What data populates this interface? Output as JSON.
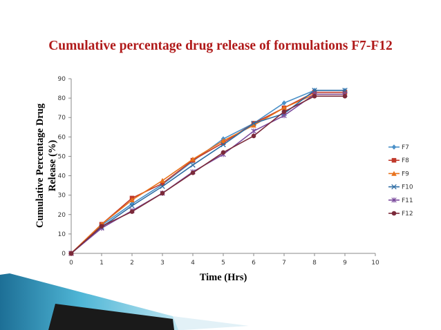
{
  "slide": {
    "title": "Cumulative percentage drug release of formulations F7-F12",
    "title_color": "#b01a1a"
  },
  "chart_data": {
    "type": "line",
    "title": "",
    "xlabel": "Time (Hrs)",
    "ylabel_lines": [
      "Cumulative Percentage Drug",
      "Release (%)"
    ],
    "xlim": [
      0,
      10
    ],
    "ylim": [
      0,
      90
    ],
    "x_ticks": [
      "0",
      "1",
      "2",
      "3",
      "4",
      "5",
      "6",
      "7",
      "8",
      "9",
      "10"
    ],
    "y_ticks": [
      "0",
      "10",
      "20",
      "30",
      "40",
      "50",
      "60",
      "70",
      "80",
      "90"
    ],
    "grid": false,
    "legend_position": "right",
    "x": [
      0,
      1,
      2,
      3,
      4,
      5,
      6,
      7,
      8,
      9
    ],
    "series": [
      {
        "name": "F7",
        "color": "#4a90c8",
        "marker": "diamond",
        "values": [
          0,
          14.5,
          25.5,
          35.5,
          47.5,
          59,
          67,
          77.5,
          84,
          84
        ]
      },
      {
        "name": "F8",
        "color": "#c0392b",
        "marker": "square",
        "values": [
          0,
          15,
          28.5,
          36,
          48,
          57,
          67,
          75,
          83,
          83
        ]
      },
      {
        "name": "F9",
        "color": "#e8711a",
        "marker": "triangle",
        "values": [
          0,
          15,
          27.5,
          37.5,
          48.5,
          58,
          66,
          75,
          82,
          82
        ]
      },
      {
        "name": "F10",
        "color": "#2e6da4",
        "marker": "x",
        "values": [
          0,
          13.5,
          24.5,
          34.5,
          45.5,
          56,
          67,
          72,
          84,
          84
        ]
      },
      {
        "name": "F11",
        "color": "#7a4a9c",
        "marker": "star",
        "values": [
          0,
          13,
          22,
          31,
          42,
          51,
          63,
          71,
          82,
          82
        ]
      },
      {
        "name": "F12",
        "color": "#7b2a3a",
        "marker": "circle",
        "values": [
          0,
          14,
          21.5,
          31,
          41.5,
          52,
          60.5,
          73,
          81,
          81
        ]
      }
    ]
  }
}
